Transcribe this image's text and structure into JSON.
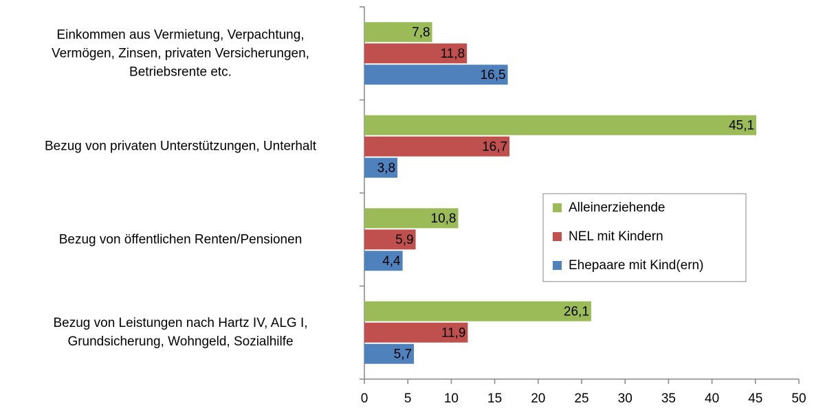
{
  "chart_data": {
    "type": "hbar",
    "categories": [
      "Einkommen aus Vermietung, Verpachtung,\nVermögen, Zinsen, privaten Versicherungen,\nBetriebsrente etc.",
      "Bezug von privaten Unterstützungen, Unterhalt",
      "Bezug von öffentlichen Renten/Pensionen",
      "Bezug von Leistungen nach Hartz IV, ALG I,\nGrundsicherung, Wohngeld, Sozialhilfe"
    ],
    "series": [
      {
        "name": "Alleinerziehende",
        "color": "#9bbb59",
        "values": [
          7.8,
          45.1,
          10.8,
          26.1
        ],
        "value_labels": [
          "7,8",
          "45,1",
          "10,8",
          "26,1"
        ]
      },
      {
        "name": "NEL mit Kindern",
        "color": "#c0504d",
        "values": [
          11.8,
          16.7,
          5.9,
          11.9
        ],
        "value_labels": [
          "11,8",
          "16,7",
          "5,9",
          "11,9"
        ]
      },
      {
        "name": "Ehepaare mit Kind(ern)",
        "color": "#4f81bd",
        "values": [
          16.5,
          3.8,
          4.4,
          5.7
        ],
        "value_labels": [
          "16,5",
          "3,8",
          "4,4",
          "5,7"
        ]
      }
    ],
    "xlim": [
      0,
      50
    ],
    "xticks": [
      0,
      5,
      10,
      15,
      20,
      25,
      30,
      35,
      40,
      45,
      50
    ],
    "legend": "right"
  }
}
